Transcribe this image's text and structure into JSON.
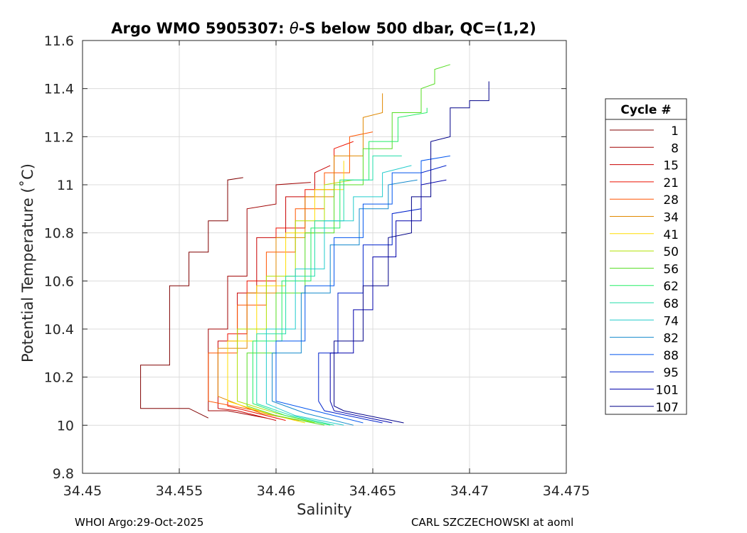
{
  "chart_data": {
    "type": "line",
    "title_prefix": "Argo WMO 5905307: ",
    "title_theta": "θ",
    "title_suffix": "-S below 500 dbar,  QC=(1,2)",
    "xlabel": "Salinity",
    "ylabel": "Potential Temperature (˚C)",
    "xlim": [
      34.45,
      34.475
    ],
    "ylim": [
      9.8,
      11.6
    ],
    "xticks": [
      34.45,
      34.455,
      34.46,
      34.465,
      34.47,
      34.475
    ],
    "xtick_labels": [
      "34.45",
      "34.455",
      "34.46",
      "34.465",
      "34.47",
      "34.475"
    ],
    "yticks": [
      9.8,
      10,
      10.2,
      10.4,
      10.6,
      10.8,
      11,
      11.2,
      11.4,
      11.6
    ],
    "ytick_labels": [
      "9.8",
      "10",
      "10.2",
      "10.4",
      "10.6",
      "10.8",
      "11",
      "11.2",
      "11.4",
      "11.6"
    ],
    "grid": true,
    "legend_title": "Cycle #",
    "legend_position": "outside-right",
    "series": [
      {
        "name": "1",
        "color": "#800000",
        "points": [
          [
            34.4565,
            10.03
          ],
          [
            34.4555,
            10.07
          ],
          [
            34.453,
            10.07
          ],
          [
            34.453,
            10.25
          ],
          [
            34.4545,
            10.25
          ],
          [
            34.4545,
            10.58
          ],
          [
            34.4555,
            10.58
          ],
          [
            34.4555,
            10.72
          ],
          [
            34.4565,
            10.72
          ],
          [
            34.4565,
            10.85
          ],
          [
            34.4575,
            10.85
          ],
          [
            34.4575,
            11.02
          ],
          [
            34.4583,
            11.03
          ]
        ]
      },
      {
        "name": "8",
        "color": "#a00000",
        "points": [
          [
            34.4595,
            10.03
          ],
          [
            34.4575,
            10.06
          ],
          [
            34.4565,
            10.06
          ],
          [
            34.4565,
            10.4
          ],
          [
            34.4575,
            10.4
          ],
          [
            34.4575,
            10.62
          ],
          [
            34.4585,
            10.62
          ],
          [
            34.4585,
            10.9
          ],
          [
            34.46,
            10.92
          ],
          [
            34.46,
            11.0
          ],
          [
            34.4618,
            11.01
          ]
        ]
      },
      {
        "name": "15",
        "color": "#c80000",
        "points": [
          [
            34.46,
            10.02
          ],
          [
            34.458,
            10.06
          ],
          [
            34.457,
            10.07
          ],
          [
            34.457,
            10.35
          ],
          [
            34.458,
            10.35
          ],
          [
            34.458,
            10.55
          ],
          [
            34.459,
            10.55
          ],
          [
            34.459,
            10.78
          ],
          [
            34.4605,
            10.78
          ],
          [
            34.4605,
            10.95
          ],
          [
            34.462,
            10.95
          ],
          [
            34.462,
            11.05
          ],
          [
            34.4628,
            11.08
          ]
        ]
      },
      {
        "name": "21",
        "color": "#ee1100",
        "points": [
          [
            34.4605,
            10.02
          ],
          [
            34.4585,
            10.06
          ],
          [
            34.4575,
            10.08
          ],
          [
            34.4575,
            10.38
          ],
          [
            34.4585,
            10.38
          ],
          [
            34.4585,
            10.6
          ],
          [
            34.46,
            10.6
          ],
          [
            34.46,
            10.82
          ],
          [
            34.4615,
            10.82
          ],
          [
            34.4615,
            10.98
          ],
          [
            34.463,
            10.98
          ],
          [
            34.463,
            11.15
          ],
          [
            34.464,
            11.18
          ]
        ]
      },
      {
        "name": "28",
        "color": "#ff5500",
        "points": [
          [
            34.461,
            10.02
          ],
          [
            34.459,
            10.06
          ],
          [
            34.4565,
            10.1
          ],
          [
            34.4565,
            10.3
          ],
          [
            34.458,
            10.3
          ],
          [
            34.458,
            10.5
          ],
          [
            34.4595,
            10.5
          ],
          [
            34.4595,
            10.72
          ],
          [
            34.461,
            10.72
          ],
          [
            34.461,
            10.9
          ],
          [
            34.4625,
            10.9
          ],
          [
            34.4625,
            11.05
          ],
          [
            34.4638,
            11.05
          ],
          [
            34.4638,
            11.2
          ],
          [
            34.465,
            11.22
          ]
        ]
      },
      {
        "name": "34",
        "color": "#e08800",
        "points": [
          [
            34.4612,
            10.02
          ],
          [
            34.4592,
            10.05
          ],
          [
            34.457,
            10.12
          ],
          [
            34.457,
            10.32
          ],
          [
            34.4585,
            10.32
          ],
          [
            34.4585,
            10.55
          ],
          [
            34.46,
            10.55
          ],
          [
            34.46,
            10.78
          ],
          [
            34.4615,
            10.78
          ],
          [
            34.4615,
            10.95
          ],
          [
            34.463,
            10.95
          ],
          [
            34.463,
            11.12
          ],
          [
            34.4645,
            11.12
          ],
          [
            34.4645,
            11.28
          ],
          [
            34.4655,
            11.3
          ],
          [
            34.4655,
            11.38
          ]
        ]
      },
      {
        "name": "41",
        "color": "#ffdd00",
        "points": [
          [
            34.4615,
            10.01
          ],
          [
            34.4595,
            10.05
          ],
          [
            34.4575,
            10.1
          ],
          [
            34.4575,
            10.35
          ],
          [
            34.459,
            10.35
          ],
          [
            34.459,
            10.58
          ],
          [
            34.4605,
            10.58
          ],
          [
            34.4605,
            10.8
          ],
          [
            34.462,
            10.8
          ],
          [
            34.462,
            10.98
          ],
          [
            34.4635,
            10.98
          ],
          [
            34.4635,
            11.1
          ]
        ]
      },
      {
        "name": "50",
        "color": "#b0e000",
        "points": [
          [
            34.462,
            10.01
          ],
          [
            34.46,
            10.05
          ],
          [
            34.458,
            10.1
          ],
          [
            34.458,
            10.4
          ],
          [
            34.4595,
            10.4
          ],
          [
            34.4595,
            10.62
          ],
          [
            34.461,
            10.62
          ],
          [
            34.461,
            10.85
          ],
          [
            34.4625,
            10.85
          ],
          [
            34.4625,
            11.0
          ],
          [
            34.464,
            11.02
          ]
        ]
      },
      {
        "name": "56",
        "color": "#55dd22",
        "points": [
          [
            34.4625,
            10.0
          ],
          [
            34.46,
            10.04
          ],
          [
            34.4585,
            10.08
          ],
          [
            34.4585,
            10.3
          ],
          [
            34.46,
            10.3
          ],
          [
            34.46,
            10.55
          ],
          [
            34.4615,
            10.55
          ],
          [
            34.4615,
            10.8
          ],
          [
            34.463,
            10.8
          ],
          [
            34.463,
            11.0
          ],
          [
            34.4645,
            11.0
          ],
          [
            34.4645,
            11.15
          ],
          [
            34.466,
            11.15
          ],
          [
            34.466,
            11.3
          ],
          [
            34.4675,
            11.3
          ],
          [
            34.4675,
            11.4
          ],
          [
            34.4682,
            11.42
          ],
          [
            34.4682,
            11.48
          ],
          [
            34.469,
            11.5
          ]
        ]
      },
      {
        "name": "62",
        "color": "#22ee66",
        "points": [
          [
            34.4628,
            10.0
          ],
          [
            34.4605,
            10.04
          ],
          [
            34.4588,
            10.09
          ],
          [
            34.4588,
            10.35
          ],
          [
            34.4603,
            10.35
          ],
          [
            34.4603,
            10.6
          ],
          [
            34.4618,
            10.6
          ],
          [
            34.4618,
            10.82
          ],
          [
            34.4633,
            10.82
          ],
          [
            34.4633,
            11.02
          ],
          [
            34.4648,
            11.02
          ],
          [
            34.4648,
            11.18
          ],
          [
            34.4663,
            11.18
          ],
          [
            34.4663,
            11.28
          ],
          [
            34.4678,
            11.3
          ],
          [
            34.4678,
            11.32
          ]
        ]
      },
      {
        "name": "68",
        "color": "#22ddaa",
        "points": [
          [
            34.463,
            10.0
          ],
          [
            34.4608,
            10.04
          ],
          [
            34.459,
            10.09
          ],
          [
            34.459,
            10.38
          ],
          [
            34.4605,
            10.38
          ],
          [
            34.4605,
            10.62
          ],
          [
            34.462,
            10.62
          ],
          [
            34.462,
            10.85
          ],
          [
            34.4635,
            10.85
          ],
          [
            34.4635,
            11.02
          ],
          [
            34.465,
            11.02
          ],
          [
            34.465,
            11.12
          ],
          [
            34.4665,
            11.12
          ]
        ]
      },
      {
        "name": "74",
        "color": "#22cccc",
        "points": [
          [
            34.4635,
            10.0
          ],
          [
            34.461,
            10.04
          ],
          [
            34.4595,
            10.09
          ],
          [
            34.4595,
            10.4
          ],
          [
            34.461,
            10.4
          ],
          [
            34.461,
            10.65
          ],
          [
            34.4625,
            10.65
          ],
          [
            34.4625,
            10.85
          ],
          [
            34.464,
            10.85
          ],
          [
            34.464,
            10.95
          ],
          [
            34.4655,
            10.95
          ],
          [
            34.4655,
            11.05
          ],
          [
            34.467,
            11.08
          ]
        ]
      },
      {
        "name": "82",
        "color": "#1188cc",
        "points": [
          [
            34.464,
            10.0
          ],
          [
            34.4615,
            10.05
          ],
          [
            34.4598,
            10.1
          ],
          [
            34.4598,
            10.3
          ],
          [
            34.4613,
            10.3
          ],
          [
            34.4613,
            10.55
          ],
          [
            34.4628,
            10.55
          ],
          [
            34.4628,
            10.75
          ],
          [
            34.4643,
            10.75
          ],
          [
            34.4643,
            10.9
          ],
          [
            34.4658,
            10.9
          ],
          [
            34.4658,
            11.0
          ],
          [
            34.4673,
            11.02
          ]
        ]
      },
      {
        "name": "88",
        "color": "#0055ee",
        "points": [
          [
            34.4645,
            10.01
          ],
          [
            34.462,
            10.06
          ],
          [
            34.46,
            10.1
          ],
          [
            34.46,
            10.35
          ],
          [
            34.4615,
            10.35
          ],
          [
            34.4615,
            10.58
          ],
          [
            34.463,
            10.58
          ],
          [
            34.463,
            10.78
          ],
          [
            34.4645,
            10.78
          ],
          [
            34.4645,
            10.92
          ],
          [
            34.466,
            10.92
          ],
          [
            34.466,
            11.05
          ],
          [
            34.4675,
            11.05
          ],
          [
            34.4675,
            11.1
          ],
          [
            34.469,
            11.12
          ]
        ]
      },
      {
        "name": "95",
        "color": "#0022cc",
        "points": [
          [
            34.4655,
            10.01
          ],
          [
            34.4625,
            10.06
          ],
          [
            34.4622,
            10.1
          ],
          [
            34.4622,
            10.3
          ],
          [
            34.4632,
            10.3
          ],
          [
            34.4632,
            10.55
          ],
          [
            34.4645,
            10.55
          ],
          [
            34.4645,
            10.75
          ],
          [
            34.466,
            10.75
          ],
          [
            34.466,
            10.88
          ],
          [
            34.4675,
            10.9
          ],
          [
            34.4675,
            11.05
          ],
          [
            34.4688,
            11.08
          ]
        ]
      },
      {
        "name": "101",
        "color": "#0000aa",
        "points": [
          [
            34.466,
            10.01
          ],
          [
            34.463,
            10.06
          ],
          [
            34.4628,
            10.1
          ],
          [
            34.4628,
            10.3
          ],
          [
            34.464,
            10.3
          ],
          [
            34.464,
            10.48
          ],
          [
            34.465,
            10.48
          ],
          [
            34.465,
            10.7
          ],
          [
            34.4662,
            10.7
          ],
          [
            34.4662,
            10.85
          ],
          [
            34.4675,
            10.85
          ],
          [
            34.4675,
            11.0
          ],
          [
            34.4688,
            11.02
          ]
        ]
      },
      {
        "name": "107",
        "color": "#000088",
        "points": [
          [
            34.4666,
            10.01
          ],
          [
            34.4635,
            10.06
          ],
          [
            34.463,
            10.08
          ],
          [
            34.463,
            10.35
          ],
          [
            34.4645,
            10.35
          ],
          [
            34.4645,
            10.58
          ],
          [
            34.4658,
            10.58
          ],
          [
            34.4658,
            10.78
          ],
          [
            34.467,
            10.8
          ],
          [
            34.467,
            10.95
          ],
          [
            34.468,
            10.95
          ],
          [
            34.468,
            11.18
          ],
          [
            34.469,
            11.2
          ],
          [
            34.469,
            11.32
          ],
          [
            34.47,
            11.32
          ],
          [
            34.47,
            11.35
          ],
          [
            34.471,
            11.35
          ],
          [
            34.471,
            11.43
          ]
        ]
      }
    ]
  },
  "footer": {
    "left": "WHOI Argo:29-Oct-2025",
    "right": "CARL SZCZECHOWSKI at aoml"
  }
}
